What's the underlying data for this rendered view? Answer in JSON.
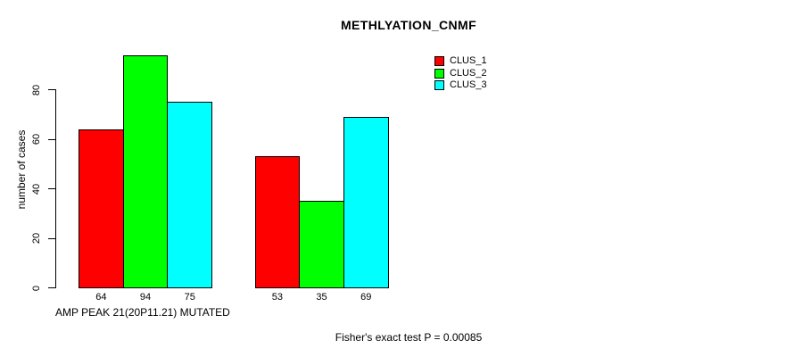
{
  "chart_data": {
    "type": "bar",
    "title": "METHLYATION_CNMF",
    "ylabel": "number of cases",
    "xlabel": "AMP PEAK 21(20P11.21) MUTATED",
    "footer": "Fisher's exact test P = 0.00085",
    "ylim": [
      0,
      80
    ],
    "yticks": [
      0,
      20,
      40,
      60,
      80
    ],
    "grid": false,
    "background_color": "#FFFFFF",
    "bar_outline_color": "#000000",
    "categories": [
      "",
      ""
    ],
    "series": [
      {
        "name": "CLUS_1",
        "color": "#FF0000",
        "values": [
          64,
          53
        ]
      },
      {
        "name": "CLUS_2",
        "color": "#00FF00",
        "values": [
          94,
          35
        ]
      },
      {
        "name": "CLUS_3",
        "color": "#00FFFF",
        "values": [
          75,
          69
        ]
      }
    ],
    "bar_value_labels": [
      [
        64,
        94,
        75
      ],
      [
        53,
        35,
        69
      ]
    ],
    "legend": {
      "position": "right-of-plot-top",
      "entries": [
        {
          "label": "CLUS_1",
          "color": "#FF0000"
        },
        {
          "label": "CLUS_2",
          "color": "#00FF00"
        },
        {
          "label": "CLUS_3",
          "color": "#00FFFF"
        }
      ]
    }
  }
}
